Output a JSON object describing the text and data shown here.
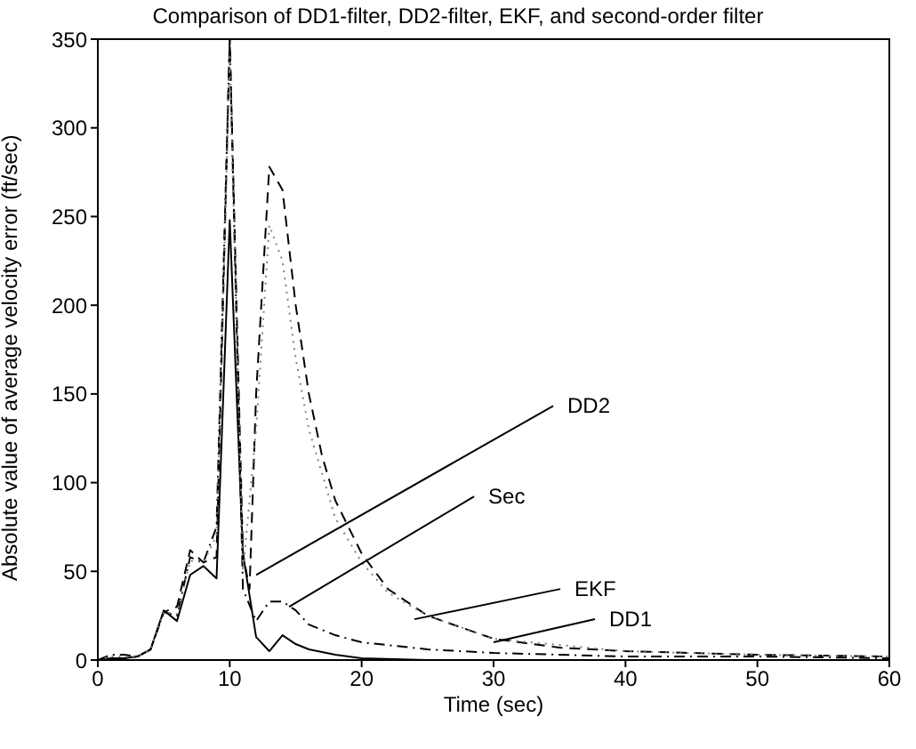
{
  "chart_data": {
    "type": "line",
    "title": "Comparison of DD1-filter, DD2-filter, EKF, and second-order filter",
    "xlabel": "Time (sec)",
    "ylabel": "Absolute value of average velocity error (ft/sec)",
    "xlim": [
      0,
      60
    ],
    "xticks": [
      0,
      10,
      20,
      30,
      40,
      50,
      60
    ],
    "ylim": [
      0,
      350
    ],
    "yticks": [
      0,
      50,
      100,
      150,
      200,
      250,
      300,
      350
    ],
    "grid": false,
    "legend": false,
    "marker": "none",
    "series": [
      {
        "color": "#000000",
        "line_style": "solid",
        "x": [
          0,
          1,
          2,
          3,
          4,
          5,
          6,
          7,
          8,
          9,
          10,
          11,
          12,
          13,
          14,
          15,
          16,
          18,
          20,
          25,
          30,
          60
        ],
        "values": [
          0,
          1,
          1,
          2,
          6,
          28,
          22,
          48,
          53,
          46,
          248,
          60,
          13,
          5,
          14,
          9,
          6,
          3,
          1,
          0,
          0,
          0
        ]
      },
      {
        "color": "#000000",
        "line_style": "dashdot",
        "x": [
          0,
          1,
          2,
          3,
          4,
          5,
          6,
          7,
          8,
          9,
          10,
          11,
          12,
          13,
          14,
          15,
          16,
          18,
          20,
          25,
          30,
          40,
          50,
          60
        ],
        "values": [
          0,
          3,
          3,
          2,
          6,
          27,
          25,
          58,
          55,
          75,
          350,
          40,
          22,
          33,
          33,
          28,
          20,
          14,
          10,
          6,
          4,
          2,
          2,
          1
        ]
      },
      {
        "color": "#000000",
        "line_style": "dashed",
        "x": [
          0,
          1,
          2,
          3,
          4,
          5,
          6,
          7,
          8,
          9,
          10,
          11,
          11.5,
          12,
          13,
          14,
          15,
          16,
          17,
          18,
          20,
          22,
          25,
          30,
          35,
          40,
          50,
          60
        ],
        "values": [
          0,
          1,
          1,
          2,
          6,
          27,
          30,
          62,
          55,
          58,
          350,
          60,
          40,
          150,
          278,
          265,
          200,
          150,
          115,
          90,
          60,
          40,
          25,
          12,
          7,
          5,
          3,
          2
        ]
      },
      {
        "color": "#808080",
        "line_style": "dotted",
        "x": [
          0,
          1,
          2,
          3,
          4,
          5,
          6,
          7,
          8,
          9,
          10,
          11,
          12,
          13,
          14,
          15,
          16,
          18,
          20,
          22,
          25,
          30,
          40,
          50,
          60
        ],
        "values": [
          0,
          2,
          2,
          2,
          6,
          27,
          26,
          56,
          55,
          70,
          340,
          50,
          130,
          245,
          225,
          170,
          130,
          80,
          55,
          38,
          25,
          12,
          5,
          3,
          2
        ]
      }
    ],
    "annotations": [
      {
        "text": "DD2",
        "x": 12,
        "y": 48
      },
      {
        "text": "Sec",
        "x": 14.5,
        "y": 30
      },
      {
        "text": "EKF",
        "x": 24,
        "y": 23
      },
      {
        "text": "DD1",
        "x": 30,
        "y": 10
      }
    ]
  }
}
